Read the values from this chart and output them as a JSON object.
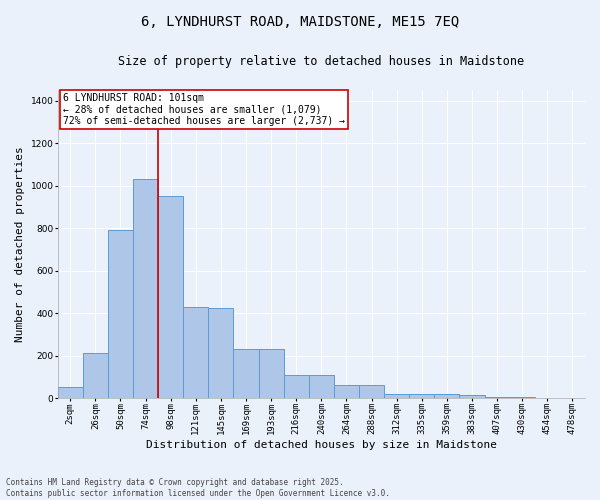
{
  "title_line1": "6, LYNDHURST ROAD, MAIDSTONE, ME15 7EQ",
  "title_line2": "Size of property relative to detached houses in Maidstone",
  "xlabel": "Distribution of detached houses by size in Maidstone",
  "ylabel": "Number of detached properties",
  "categories": [
    "2sqm",
    "26sqm",
    "50sqm",
    "74sqm",
    "98sqm",
    "121sqm",
    "145sqm",
    "169sqm",
    "193sqm",
    "216sqm",
    "240sqm",
    "264sqm",
    "288sqm",
    "312sqm",
    "335sqm",
    "359sqm",
    "383sqm",
    "407sqm",
    "430sqm",
    "454sqm",
    "478sqm"
  ],
  "values": [
    50,
    210,
    790,
    1030,
    950,
    430,
    425,
    230,
    230,
    110,
    110,
    60,
    60,
    20,
    20,
    20,
    15,
    5,
    5,
    0,
    0
  ],
  "bar_color": "#aec6e8",
  "bar_edge_color": "#5b9bd5",
  "bg_color": "#eaf1fa",
  "grid_color": "#ffffff",
  "vline_x": 3.5,
  "vline_color": "#cc0000",
  "annotation_text": "6 LYNDHURST ROAD: 101sqm\n← 28% of detached houses are smaller (1,079)\n72% of semi-detached houses are larger (2,737) →",
  "annotation_box_color": "#ffffff",
  "annotation_box_edge": "#cc0000",
  "ylim": [
    0,
    1450
  ],
  "yticks": [
    0,
    200,
    400,
    600,
    800,
    1000,
    1200,
    1400
  ],
  "footnote": "Contains HM Land Registry data © Crown copyright and database right 2025.\nContains public sector information licensed under the Open Government Licence v3.0.",
  "title_fontsize": 10,
  "subtitle_fontsize": 8.5,
  "tick_fontsize": 6.5,
  "label_fontsize": 8,
  "annot_fontsize": 7,
  "footnote_fontsize": 5.5
}
